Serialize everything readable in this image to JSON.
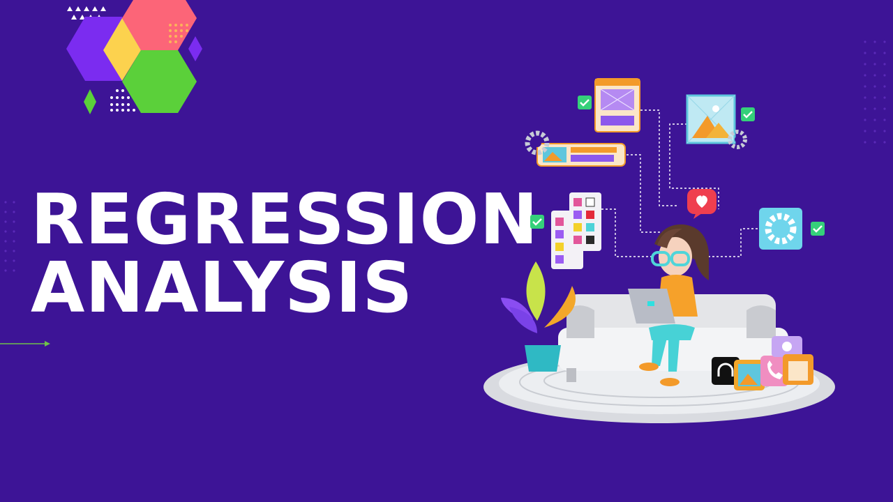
{
  "colors": {
    "background": "#3d1496",
    "title": "#ffffff",
    "hex_purple": "#7b2cf0",
    "hex_pink": "#fc6578",
    "hex_yellow": "#fcd24e",
    "hex_green": "#5bd03a",
    "accent_green": "#6fc24a"
  },
  "title": {
    "line1": "REGRESSION",
    "line2": "ANALYSIS"
  },
  "illustration": {
    "subject": "person-with-laptop-on-sofa",
    "icons": [
      "image-card-icon",
      "picture-frame-icon",
      "gear-icon",
      "heart-bubble-icon",
      "color-palette-icon",
      "check-icon",
      "plant-icon",
      "headphones-icon",
      "phone-icon",
      "user-card-icon"
    ]
  }
}
